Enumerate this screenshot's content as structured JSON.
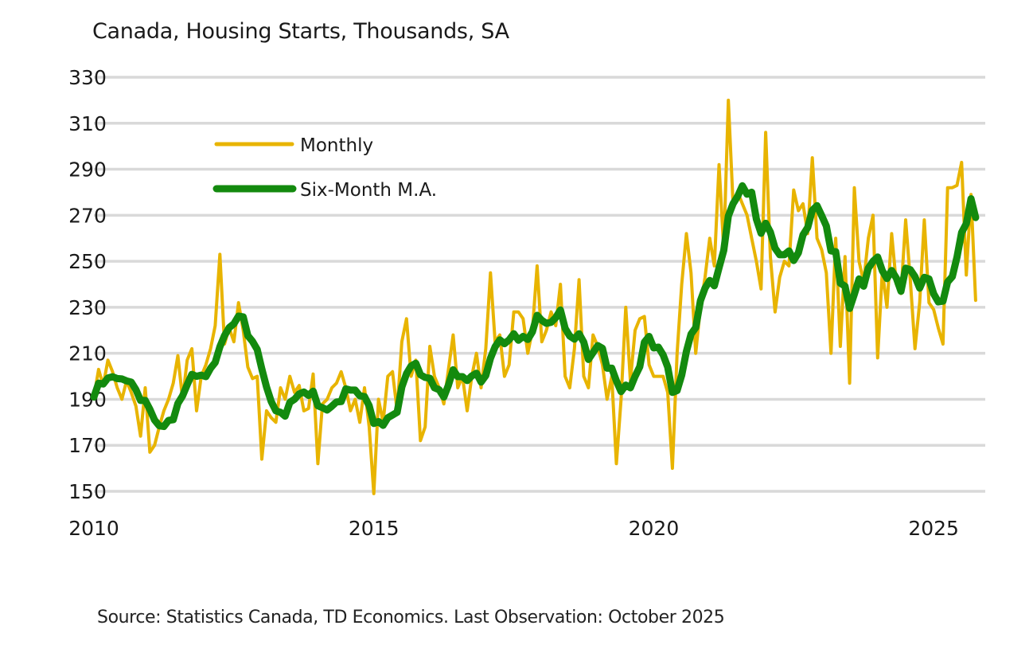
{
  "chart_data": {
    "type": "line",
    "title": "Canada, Housing Starts, Thousands, SA",
    "xlabel": "",
    "ylabel": "",
    "ylim": [
      150,
      330
    ],
    "yticks": [
      "150",
      "170",
      "190",
      "210",
      "230",
      "250",
      "270",
      "290",
      "310",
      "330"
    ],
    "ytick_values": [
      150,
      170,
      190,
      210,
      230,
      250,
      270,
      290,
      310,
      330
    ],
    "xticks": [
      "2010",
      "2015",
      "2020",
      "2025"
    ],
    "xtick_values": [
      2010,
      2015,
      2020,
      2025
    ],
    "x_start": "2010-01",
    "x_end": "2025-10",
    "frequency": "monthly",
    "grid": "horizontal",
    "legend_position": "upper-left",
    "series": [
      {
        "name": "Monthly",
        "color": "#E8B400",
        "values": [
          191,
          203,
          196,
          207,
          202,
          195,
          190,
          198,
          193,
          187,
          174,
          195,
          167,
          170,
          178,
          185,
          190,
          197,
          209,
          190,
          207,
          212,
          185,
          200,
          205,
          212,
          222,
          253,
          214,
          221,
          215,
          232,
          220,
          204,
          199,
          200,
          164,
          185,
          182,
          180,
          195,
          190,
          200,
          193,
          196,
          185,
          186,
          201,
          162,
          188,
          190,
          195,
          197,
          202,
          195,
          185,
          190,
          180,
          195,
          178,
          149,
          190,
          180,
          200,
          202,
          185,
          215,
          225,
          200,
          207,
          172,
          178,
          213,
          200,
          195,
          188,
          203,
          218,
          195,
          200,
          185,
          200,
          210,
          195,
          212,
          245,
          215,
          218,
          200,
          205,
          228,
          228,
          225,
          210,
          220,
          248,
          215,
          220,
          228,
          222,
          240,
          200,
          195,
          212,
          242,
          200,
          195,
          218,
          213,
          205,
          190,
          200,
          162,
          190,
          230,
          198,
          220,
          225,
          226,
          205,
          200,
          200,
          200,
          193,
          160,
          210,
          240,
          262,
          245,
          210,
          230,
          243,
          260,
          248,
          292,
          255,
          320,
          275,
          280,
          275,
          270,
          260,
          250,
          238,
          306,
          252,
          228,
          243,
          250,
          248,
          281,
          272,
          275,
          262,
          295,
          260,
          255,
          245,
          210,
          260,
          213,
          252,
          197,
          282,
          250,
          241,
          260,
          270,
          208,
          246,
          230,
          262,
          240,
          236,
          268,
          242,
          212,
          232,
          268,
          232,
          229,
          221,
          214,
          282,
          282,
          283,
          293,
          244,
          279,
          233
        ]
      },
      {
        "name": "Six-Month M.A.",
        "color": "#138A0E",
        "derived_from": "Monthly",
        "moving_average_window": 6
      }
    ]
  },
  "footer": {
    "source": "Source: Statistics Canada, TD Economics.  Last Observation: October 2025"
  }
}
